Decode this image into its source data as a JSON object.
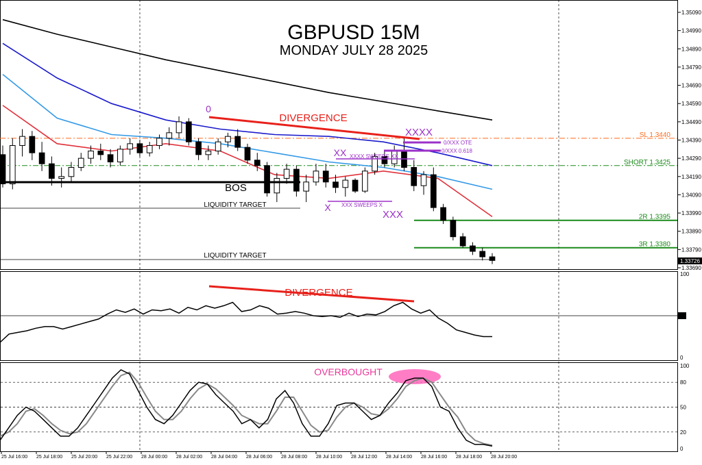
{
  "chart_data": {
    "type": "candlestick",
    "title": "GBPUSD 15M",
    "subtitle": "MONDAY JULY 28 2025",
    "price_panel": {
      "ylim": [
        1.3369,
        1.3511
      ],
      "price_ticks": [
        "1.35090",
        "1.34990",
        "1.34890",
        "1.34790",
        "1.34690",
        "1.34590",
        "1.34490",
        "1.34390",
        "1.34290",
        "1.34190",
        "1.34090",
        "1.33990",
        "1.33890",
        "1.33790",
        "1.33690"
      ],
      "current_price": "1.33726",
      "candles": [
        {
          "open": 1.3431,
          "high": 1.3436,
          "low": 1.3413,
          "close": 1.3415
        },
        {
          "open": 1.3415,
          "high": 1.344,
          "low": 1.3412,
          "close": 1.3436
        },
        {
          "open": 1.3436,
          "high": 1.3445,
          "low": 1.343,
          "close": 1.3441
        },
        {
          "open": 1.3441,
          "high": 1.3444,
          "low": 1.3428,
          "close": 1.3432
        },
        {
          "open": 1.3432,
          "high": 1.3438,
          "low": 1.3422,
          "close": 1.3426
        },
        {
          "open": 1.3426,
          "high": 1.343,
          "low": 1.3414,
          "close": 1.3418
        },
        {
          "open": 1.3418,
          "high": 1.3424,
          "low": 1.3413,
          "close": 1.3419
        },
        {
          "open": 1.3419,
          "high": 1.3427,
          "low": 1.3416,
          "close": 1.3424
        },
        {
          "open": 1.3424,
          "high": 1.3432,
          "low": 1.3422,
          "close": 1.3429
        },
        {
          "open": 1.3429,
          "high": 1.3436,
          "low": 1.3426,
          "close": 1.3433
        },
        {
          "open": 1.3433,
          "high": 1.3437,
          "low": 1.3428,
          "close": 1.3431
        },
        {
          "open": 1.3431,
          "high": 1.3434,
          "low": 1.3424,
          "close": 1.3427
        },
        {
          "open": 1.3427,
          "high": 1.3436,
          "low": 1.3425,
          "close": 1.3434
        },
        {
          "open": 1.3434,
          "high": 1.344,
          "low": 1.3431,
          "close": 1.3437
        },
        {
          "open": 1.3437,
          "high": 1.3439,
          "low": 1.343,
          "close": 1.3432
        },
        {
          "open": 1.3432,
          "high": 1.3438,
          "low": 1.343,
          "close": 1.3436
        },
        {
          "open": 1.3436,
          "high": 1.3442,
          "low": 1.3434,
          "close": 1.344
        },
        {
          "open": 1.344,
          "high": 1.3446,
          "low": 1.3436,
          "close": 1.3443
        },
        {
          "open": 1.3443,
          "high": 1.3452,
          "low": 1.344,
          "close": 1.3449
        },
        {
          "open": 1.3449,
          "high": 1.3451,
          "low": 1.3436,
          "close": 1.3438
        },
        {
          "open": 1.3438,
          "high": 1.344,
          "low": 1.3428,
          "close": 1.3431
        },
        {
          "open": 1.3431,
          "high": 1.3436,
          "low": 1.3428,
          "close": 1.3433
        },
        {
          "open": 1.3433,
          "high": 1.344,
          "low": 1.3431,
          "close": 1.3438
        },
        {
          "open": 1.3438,
          "high": 1.3443,
          "low": 1.3435,
          "close": 1.3441
        },
        {
          "open": 1.3441,
          "high": 1.3445,
          "low": 1.3433,
          "close": 1.3435
        },
        {
          "open": 1.3435,
          "high": 1.3437,
          "low": 1.3426,
          "close": 1.3428
        },
        {
          "open": 1.3428,
          "high": 1.3432,
          "low": 1.3422,
          "close": 1.3425
        },
        {
          "open": 1.3425,
          "high": 1.3427,
          "low": 1.3408,
          "close": 1.341
        },
        {
          "open": 1.341,
          "high": 1.3421,
          "low": 1.3405,
          "close": 1.3418
        },
        {
          "open": 1.3418,
          "high": 1.3426,
          "low": 1.3415,
          "close": 1.3423
        },
        {
          "open": 1.3423,
          "high": 1.3425,
          "low": 1.3408,
          "close": 1.3411
        },
        {
          "open": 1.3411,
          "high": 1.342,
          "low": 1.3405,
          "close": 1.3416
        },
        {
          "open": 1.3416,
          "high": 1.3426,
          "low": 1.3414,
          "close": 1.3422
        },
        {
          "open": 1.3422,
          "high": 1.3426,
          "low": 1.3413,
          "close": 1.3416
        },
        {
          "open": 1.3416,
          "high": 1.342,
          "low": 1.341,
          "close": 1.3413
        },
        {
          "open": 1.3413,
          "high": 1.3419,
          "low": 1.3408,
          "close": 1.3417
        },
        {
          "open": 1.3417,
          "high": 1.3418,
          "low": 1.341,
          "close": 1.3411
        },
        {
          "open": 1.3411,
          "high": 1.3424,
          "low": 1.341,
          "close": 1.3422
        },
        {
          "open": 1.3422,
          "high": 1.3432,
          "low": 1.342,
          "close": 1.343
        },
        {
          "open": 1.343,
          "high": 1.3433,
          "low": 1.3424,
          "close": 1.3426
        },
        {
          "open": 1.3426,
          "high": 1.3436,
          "low": 1.3424,
          "close": 1.3433
        },
        {
          "open": 1.3433,
          "high": 1.344,
          "low": 1.3422,
          "close": 1.3424
        },
        {
          "open": 1.3424,
          "high": 1.3428,
          "low": 1.3411,
          "close": 1.3414
        },
        {
          "open": 1.3414,
          "high": 1.3422,
          "low": 1.3409,
          "close": 1.342
        },
        {
          "open": 1.342,
          "high": 1.3424,
          "low": 1.34,
          "close": 1.3402
        },
        {
          "open": 1.3402,
          "high": 1.3404,
          "low": 1.3393,
          "close": 1.3395
        },
        {
          "open": 1.3395,
          "high": 1.3397,
          "low": 1.3384,
          "close": 1.3386
        },
        {
          "open": 1.3386,
          "high": 1.3388,
          "low": 1.338,
          "close": 1.3381
        },
        {
          "open": 1.3381,
          "high": 1.3383,
          "low": 1.3376,
          "close": 1.3378
        },
        {
          "open": 1.3378,
          "high": 1.338,
          "low": 1.3373,
          "close": 1.3375
        },
        {
          "open": 1.3375,
          "high": 1.3377,
          "low": 1.3371,
          "close": 1.3373
        }
      ],
      "moving_averages": [
        {
          "color": "#000000",
          "values": [
            1.3505,
            1.3497,
            1.349,
            1.3483,
            1.3477,
            1.3471,
            1.3465,
            1.346,
            1.3455,
            1.345
          ]
        },
        {
          "color": "#1a1acc",
          "values": [
            1.3492,
            1.3473,
            1.3459,
            1.345,
            1.3445,
            1.3442,
            1.3441,
            1.3438,
            1.3432,
            1.3425
          ]
        },
        {
          "color": "#3399e6",
          "values": [
            1.3475,
            1.3451,
            1.3442,
            1.344,
            1.3437,
            1.3432,
            1.3427,
            1.3424,
            1.3419,
            1.3412
          ]
        },
        {
          "color": "#e0303a",
          "values": [
            1.3458,
            1.3437,
            1.3433,
            1.3437,
            1.3433,
            1.342,
            1.3418,
            1.3422,
            1.3418,
            1.3397
          ]
        }
      ],
      "levels": [
        {
          "label": "SL 1.3440",
          "price": 1.344,
          "color": "#ff6a1a",
          "style": "dashdot"
        },
        {
          "label": "SHORT 1.3425",
          "price": 1.3425,
          "color": "#1a8a1a",
          "style": "dashdot"
        },
        {
          "label": "2R 1.3395",
          "price": 1.3395,
          "color": "#1a8a1a",
          "style": "solid"
        },
        {
          "label": "3R 1.3380",
          "price": 1.338,
          "color": "#1a8a1a",
          "style": "solid"
        }
      ],
      "annotations": {
        "divergence": "DIVERGENCE",
        "bos": "BOS",
        "liquidity_target_1": "LIQUIDITY TARGET",
        "liquidity_target_2": "LIQUIDITY TARGET",
        "zero_label": "0",
        "xxxx_label": "XXXX",
        "xx_label": "XX",
        "x_label": "X",
        "xxx_label": "XXX",
        "ote_label": "0/XXX OTE",
        "fib_label": "0/XXX 0.618",
        "xxxx_sweeps": "XXXX SWEEPS XX",
        "xxx_sweeps": "XXX SWEEPS X"
      }
    },
    "rsi_panel": {
      "ylim": [
        0,
        100
      ],
      "ticks": [
        "100",
        "50",
        "0"
      ],
      "level": 50,
      "divergence_label": "DIVERGENCE",
      "values": [
        18,
        28,
        30,
        32,
        35,
        37,
        37,
        34,
        37,
        40,
        43,
        46,
        52,
        57,
        54,
        58,
        52,
        57,
        56,
        58,
        53,
        60,
        57,
        62,
        59,
        62,
        66,
        55,
        57,
        62,
        59,
        52,
        53,
        55,
        53,
        50,
        49,
        50,
        48,
        53,
        49,
        52,
        51,
        55,
        62,
        66,
        58,
        53,
        57,
        47,
        41,
        33,
        30,
        27,
        25,
        25
      ]
    },
    "stoch_panel": {
      "ylim": [
        0,
        100
      ],
      "ticks": [
        "100",
        "80",
        "50",
        "20",
        "0"
      ],
      "levels": [
        80,
        50,
        20
      ],
      "overbought_label": "OVERBOUGHT",
      "main_values": [
        10,
        25,
        40,
        50,
        45,
        35,
        25,
        15,
        15,
        25,
        40,
        55,
        70,
        85,
        95,
        90,
        70,
        50,
        35,
        30,
        40,
        55,
        70,
        80,
        78,
        65,
        55,
        45,
        30,
        35,
        25,
        35,
        60,
        70,
        55,
        30,
        15,
        15,
        30,
        52,
        55,
        55,
        45,
        35,
        40,
        55,
        67,
        82,
        85,
        85,
        75,
        50,
        45,
        25,
        10,
        5,
        5,
        3
      ],
      "signal_values": [
        15,
        20,
        30,
        45,
        48,
        40,
        30,
        22,
        18,
        20,
        30,
        45,
        60,
        75,
        88,
        92,
        80,
        62,
        45,
        35,
        35,
        45,
        60,
        72,
        78,
        72,
        62,
        52,
        40,
        35,
        30,
        30,
        45,
        62,
        62,
        45,
        28,
        20,
        22,
        38,
        50,
        55,
        50,
        42,
        40,
        48,
        60,
        75,
        82,
        85,
        80,
        65,
        50,
        38,
        20,
        10,
        6,
        4
      ]
    },
    "x_ticks": [
      "25 Jul 16:00",
      "25 Jul 18:00",
      "25 Jul 20:00",
      "25 Jul 22:00",
      "28 Jul 00:00",
      "28 Jul 02:00",
      "28 Jul 04:00",
      "28 Jul 06:00",
      "28 Jul 08:00",
      "28 Jul 10:00",
      "28 Jul 12:00",
      "28 Jul 14:00",
      "28 Jul 16:00",
      "28 Jul 18:00",
      "28 Jul 20:00"
    ]
  }
}
